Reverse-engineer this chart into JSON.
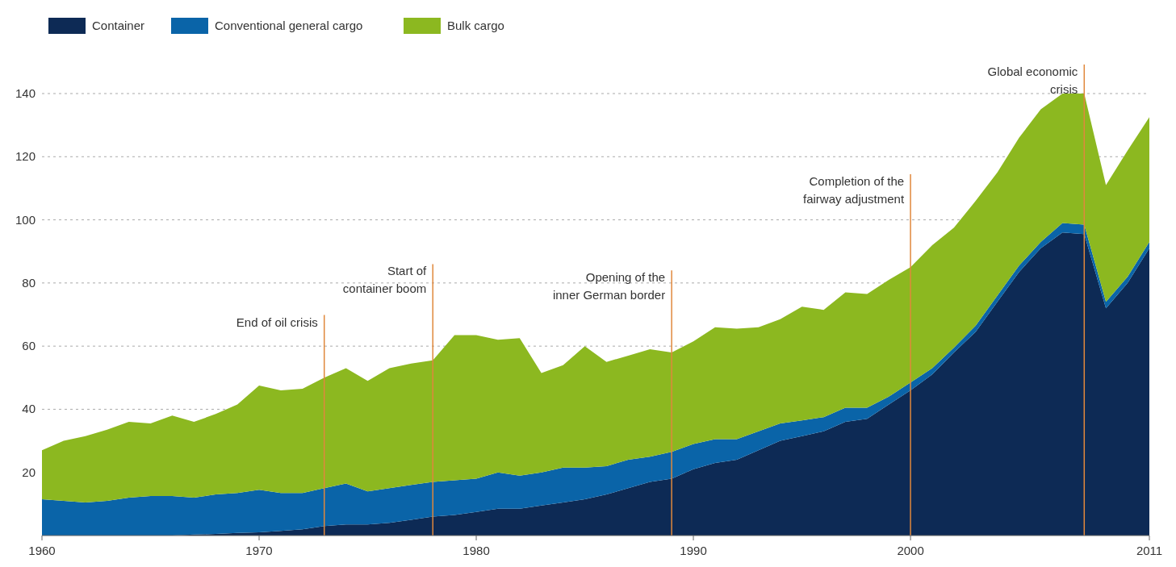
{
  "chart_data": {
    "type": "area",
    "stacked": true,
    "x": [
      1960,
      1961,
      1962,
      1963,
      1964,
      1965,
      1966,
      1967,
      1968,
      1969,
      1970,
      1971,
      1972,
      1973,
      1974,
      1975,
      1976,
      1977,
      1978,
      1979,
      1980,
      1981,
      1982,
      1983,
      1984,
      1985,
      1986,
      1987,
      1988,
      1989,
      1990,
      1991,
      1992,
      1993,
      1994,
      1995,
      1996,
      1997,
      1998,
      1999,
      2000,
      2001,
      2002,
      2003,
      2004,
      2005,
      2006,
      2007,
      2008,
      2009,
      2010,
      2011
    ],
    "series": [
      {
        "name": "Container",
        "color": "#0d2a55",
        "values": [
          0,
          0,
          0,
          0,
          0,
          0,
          0,
          0.3,
          0.5,
          0.8,
          1,
          1.5,
          2,
          3,
          3.5,
          3.5,
          4,
          5,
          6,
          6.5,
          7.5,
          8.5,
          8.5,
          9.5,
          10.5,
          11.5,
          13,
          15,
          17,
          18,
          21,
          23,
          24,
          27,
          30,
          31.5,
          33,
          36,
          37,
          41.5,
          46,
          51,
          58,
          64.5,
          74,
          83.5,
          91,
          96,
          95.5,
          72,
          80,
          91
        ]
      },
      {
        "name": "Conventional general cargo",
        "color": "#0a64a8",
        "values": [
          11.5,
          11,
          10.5,
          11,
          12,
          12.5,
          12.5,
          11.7,
          12.5,
          12.7,
          13.5,
          12,
          11.5,
          12,
          13,
          10.5,
          11,
          11,
          11,
          11,
          10.5,
          11.5,
          10.5,
          10.5,
          11,
          10,
          9,
          9,
          8,
          8.5,
          8,
          7.5,
          6.5,
          6,
          5.5,
          5,
          4.5,
          4.5,
          3.5,
          2.5,
          2.5,
          2,
          1.5,
          2,
          2,
          2,
          2,
          3,
          3,
          2,
          2,
          2
        ]
      },
      {
        "name": "Bulk cargo",
        "color": "#8cb820",
        "values": [
          15.5,
          19,
          21,
          22.5,
          24,
          23,
          25.5,
          24,
          25.5,
          28,
          33,
          32.5,
          33,
          35,
          36.5,
          35,
          38,
          38.5,
          38.5,
          46,
          45.5,
          42,
          43.5,
          31.5,
          32.5,
          38.5,
          33,
          33,
          34,
          31.5,
          32.5,
          35.5,
          35,
          33,
          33,
          36,
          34,
          36.5,
          36,
          37,
          36.5,
          39,
          38,
          39.5,
          39,
          40.5,
          42,
          41,
          41.5,
          37,
          40,
          39.5
        ]
      }
    ],
    "xlim": [
      1960,
      2011
    ],
    "xticks": [
      1960,
      1970,
      1980,
      1990,
      2000,
      2011
    ],
    "ylim": [
      0,
      140
    ],
    "yticks": [
      20,
      40,
      60,
      80,
      100,
      120,
      140
    ],
    "grid": "y",
    "legend": "top left",
    "ref_lines": [
      {
        "axis": "x",
        "value": 1973,
        "label": "End of oil crisis",
        "color": "#e0883c"
      },
      {
        "axis": "x",
        "value": 1978,
        "label": "Start of\ncontainer boom",
        "color": "#e0883c"
      },
      {
        "axis": "x",
        "value": 1989,
        "label": "Opening of the\ninner German border",
        "color": "#e0883c"
      },
      {
        "axis": "x",
        "value": 2000,
        "label": "Completion of the\nfairway adjustment",
        "color": "#e0883c"
      },
      {
        "axis": "x",
        "value": 2008,
        "label": "Global economic\ncrisis",
        "color": "#e0883c"
      }
    ]
  }
}
